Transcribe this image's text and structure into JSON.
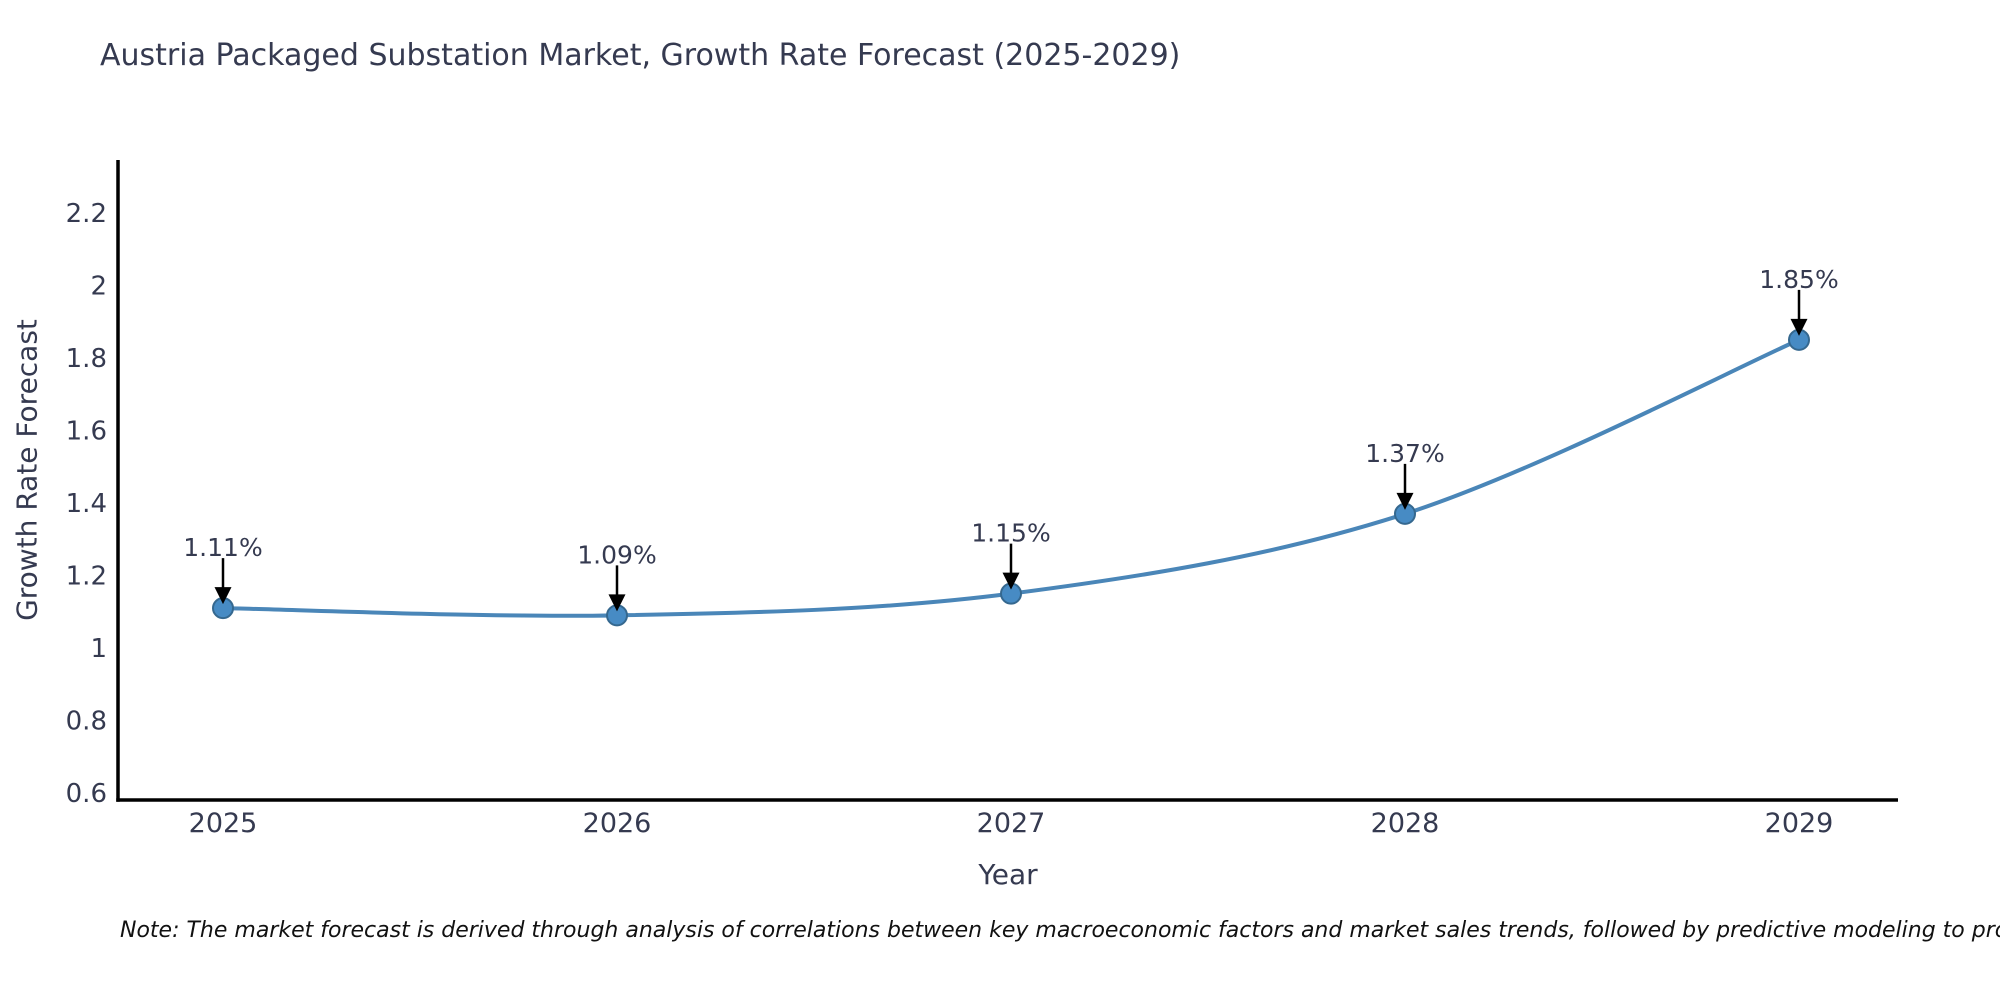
{
  "title": "Austria Packaged Substation Market, Growth Rate Forecast (2025-2029)",
  "note": "Note: The market forecast is derived through analysis of correlations between key macroeconomic factors and market sales trends, followed by predictive modeling to project future sales",
  "chart_data": {
    "type": "line",
    "title": "Austria Packaged Substation Market, Growth Rate Forecast (2025-2029)",
    "xlabel": "Year",
    "ylabel": "Growth Rate Forecast",
    "categories": [
      "2025",
      "2026",
      "2027",
      "2028",
      "2029"
    ],
    "series": [
      {
        "name": "Growth Rate Forecast",
        "values": [
          1.11,
          1.09,
          1.15,
          1.37,
          1.85
        ],
        "point_labels": [
          "1.11%",
          "1.09%",
          "1.15%",
          "1.37%",
          "1.85%"
        ]
      }
    ],
    "y_ticks": [
      2.2,
      2,
      1.8,
      1.6,
      1.4,
      1.2,
      1,
      0.8,
      0.6
    ],
    "y_tick_labels": [
      "2.2",
      "2",
      "1.8",
      "1.6",
      "1.4",
      "1.2",
      "1",
      "0.8",
      "0.6"
    ],
    "ylim": [
      0.58,
      2.35
    ],
    "grid": false,
    "legend": "none",
    "line_smoothing": "spline",
    "annotation_style": "value label with downward black arrow to marker",
    "colors": {
      "line": "#4a86b8",
      "marker_fill": "#478bc4",
      "marker_edge": "#35688f",
      "axis": "#000000",
      "text": "#353a50",
      "arrow": "#000000",
      "note_text": "#111111",
      "background": "#ffffff"
    }
  }
}
